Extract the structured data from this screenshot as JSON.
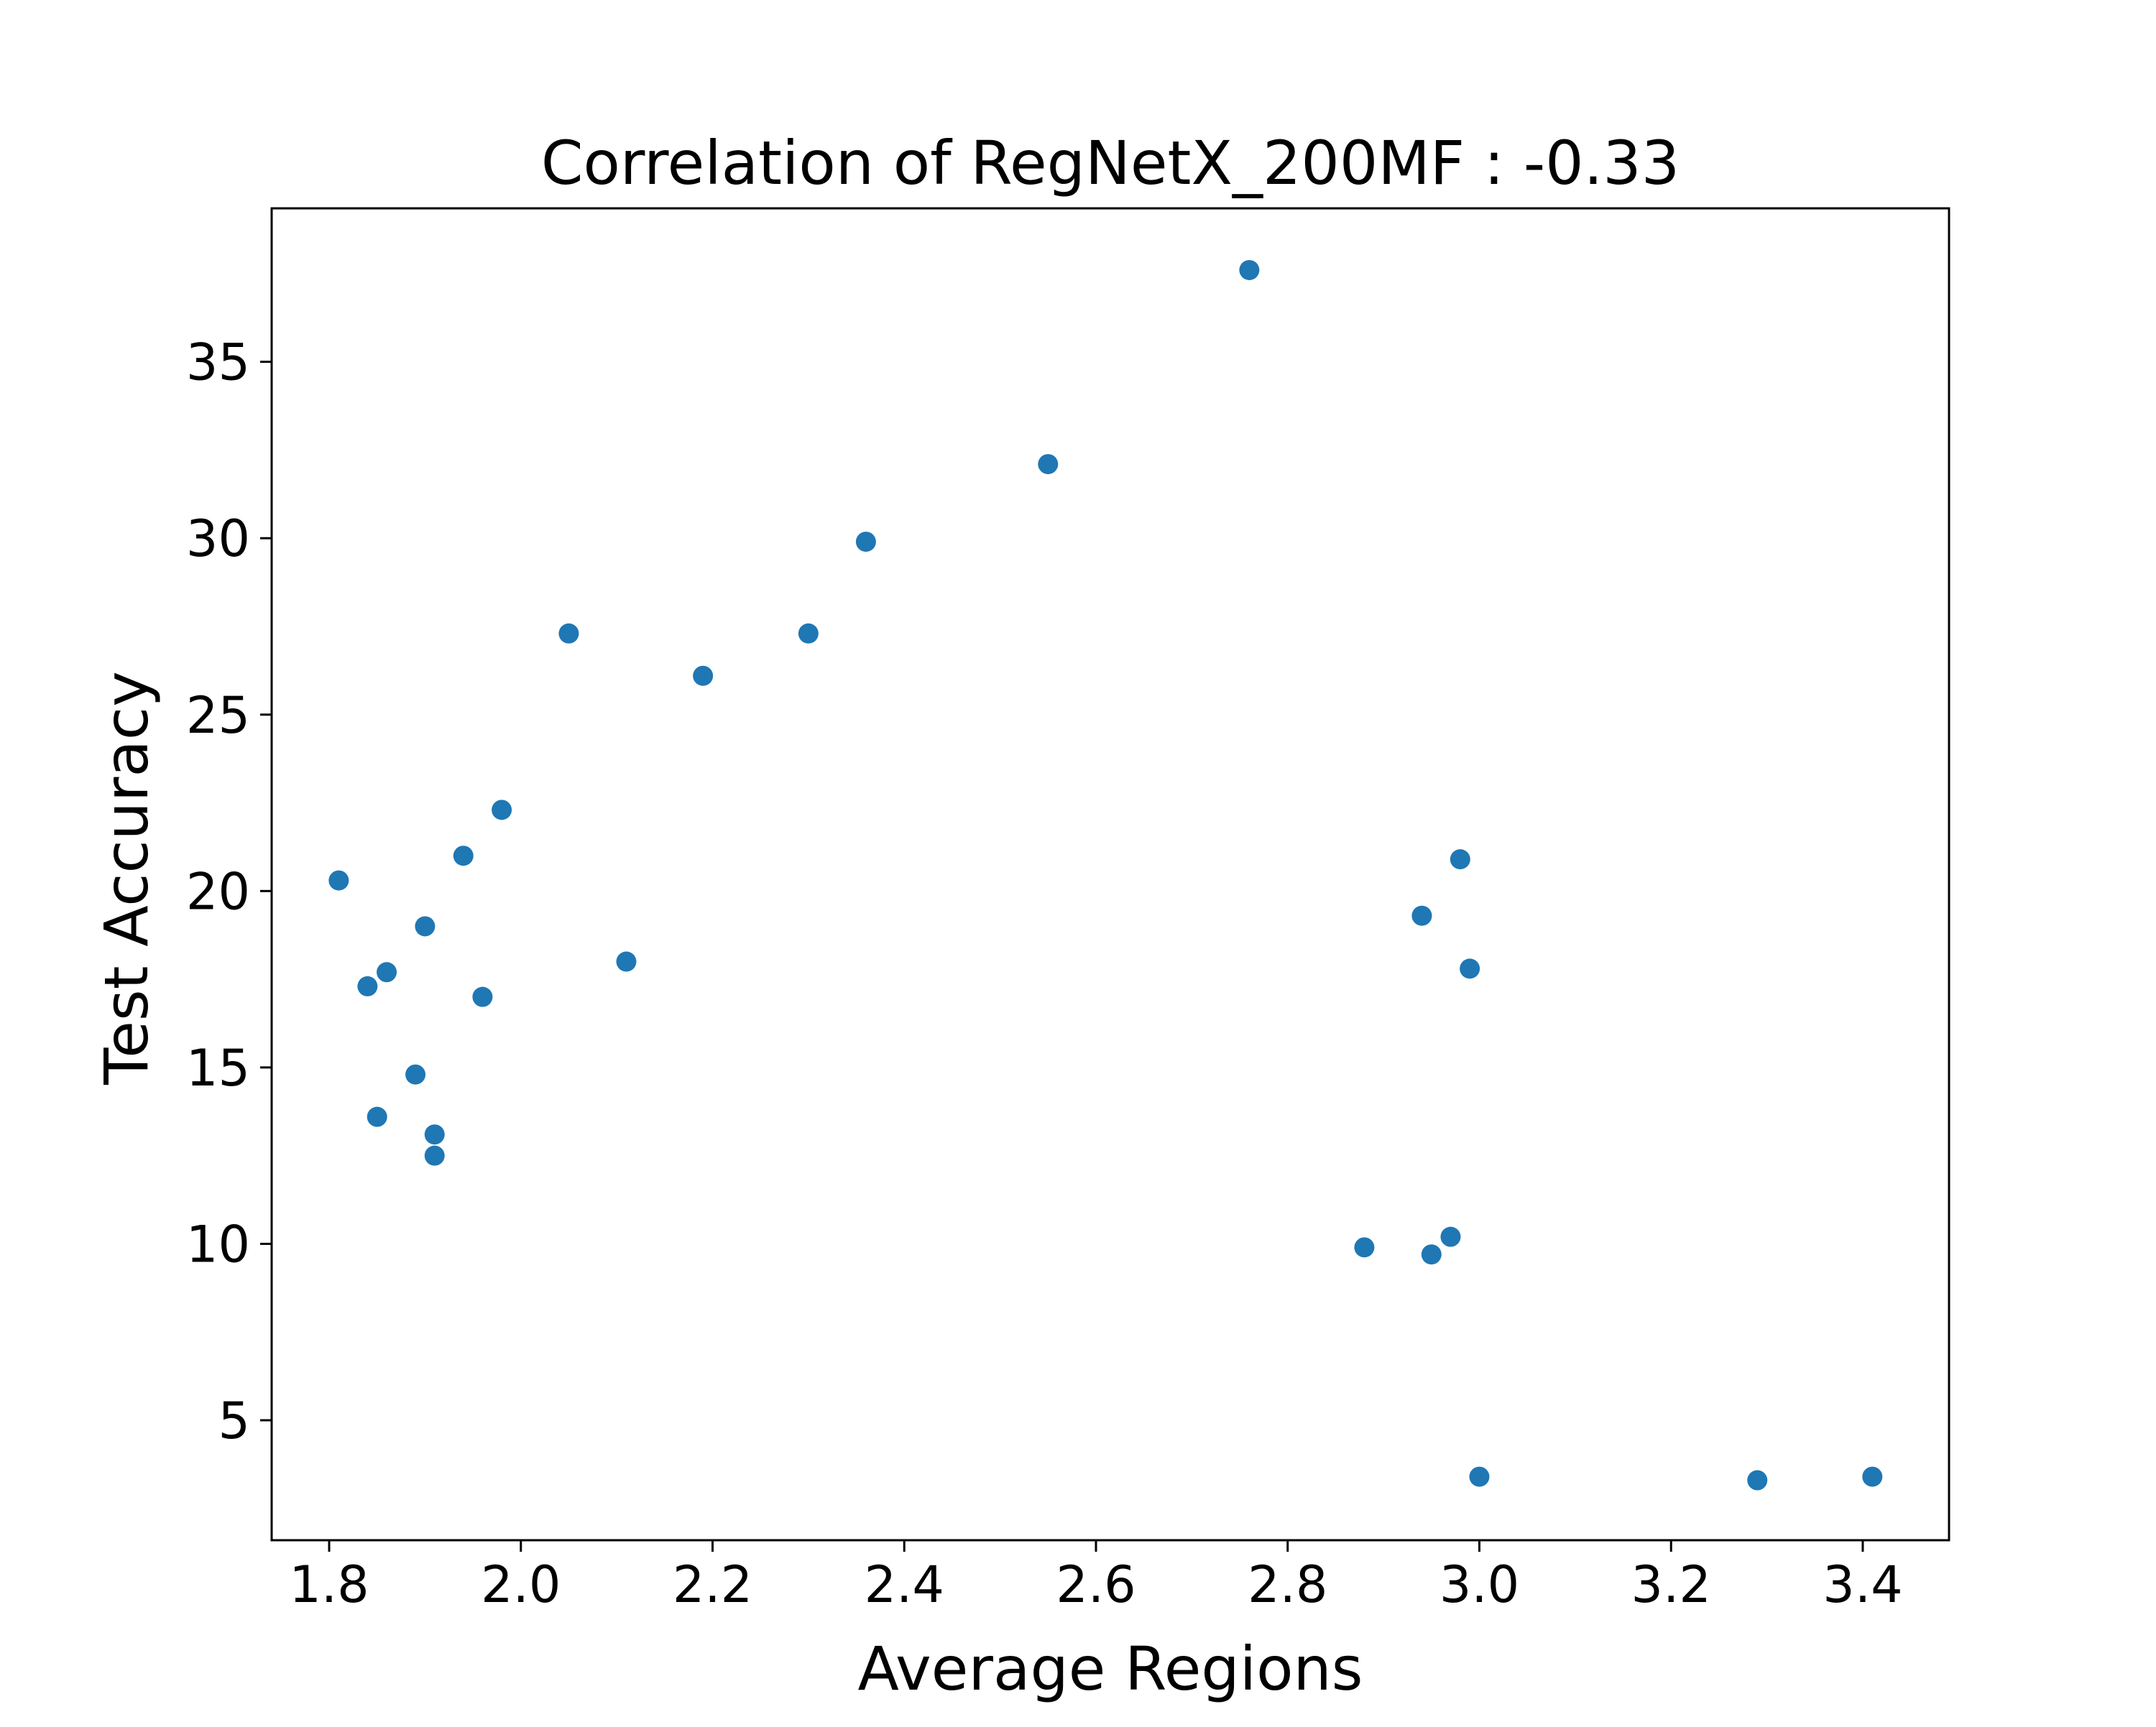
{
  "chart_data": {
    "type": "scatter",
    "title": "Correlation of RegNetX_200MF : -0.33",
    "xlabel": "Average Regions",
    "ylabel": "Test Accuracy",
    "xlim": [
      1.74,
      3.49
    ],
    "ylim": [
      1.6,
      39.35
    ],
    "xticks": [
      1.8,
      2.0,
      2.2,
      2.4,
      2.6,
      2.8,
      3.0,
      3.2,
      3.4
    ],
    "xtick_labels": [
      "1.8",
      "2.0",
      "2.2",
      "2.4",
      "2.6",
      "2.8",
      "3.0",
      "3.2",
      "3.4"
    ],
    "yticks": [
      5,
      10,
      15,
      20,
      25,
      30,
      35
    ],
    "ytick_labels": [
      "5",
      "10",
      "15",
      "20",
      "25",
      "30",
      "35"
    ],
    "grid": false,
    "legend": false,
    "marker_color": "#1f77b4",
    "series": [
      {
        "points": [
          {
            "x": 1.81,
            "y": 20.3
          },
          {
            "x": 1.84,
            "y": 17.3
          },
          {
            "x": 1.85,
            "y": 13.6
          },
          {
            "x": 1.86,
            "y": 17.7
          },
          {
            "x": 1.89,
            "y": 14.8
          },
          {
            "x": 1.9,
            "y": 19.0
          },
          {
            "x": 1.91,
            "y": 13.1
          },
          {
            "x": 1.91,
            "y": 12.5
          },
          {
            "x": 1.94,
            "y": 21.0
          },
          {
            "x": 1.96,
            "y": 17.0
          },
          {
            "x": 1.98,
            "y": 22.3
          },
          {
            "x": 2.05,
            "y": 27.3
          },
          {
            "x": 2.11,
            "y": 18.0
          },
          {
            "x": 2.19,
            "y": 26.1
          },
          {
            "x": 2.3,
            "y": 27.3
          },
          {
            "x": 2.36,
            "y": 29.9
          },
          {
            "x": 2.55,
            "y": 32.1
          },
          {
            "x": 2.76,
            "y": 37.6
          },
          {
            "x": 2.88,
            "y": 9.9
          },
          {
            "x": 2.94,
            "y": 19.3
          },
          {
            "x": 2.95,
            "y": 9.7
          },
          {
            "x": 2.97,
            "y": 10.2
          },
          {
            "x": 2.98,
            "y": 20.9
          },
          {
            "x": 2.99,
            "y": 17.8
          },
          {
            "x": 3.0,
            "y": 3.4
          },
          {
            "x": 3.29,
            "y": 3.3
          },
          {
            "x": 3.41,
            "y": 3.4
          }
        ]
      }
    ]
  }
}
